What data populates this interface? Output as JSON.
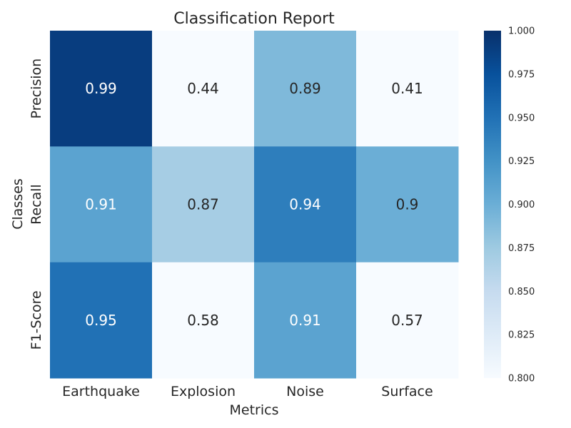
{
  "chart_data": {
    "type": "heatmap",
    "title": "Classification Report",
    "xlabel": "Metrics",
    "ylabel": "Classes",
    "x_categories": [
      "Earthquake",
      "Explosion",
      "Noise",
      "Surface"
    ],
    "y_categories": [
      "Precision",
      "Recall",
      "F1-Score"
    ],
    "values": [
      [
        0.99,
        0.44,
        0.89,
        0.41
      ],
      [
        0.91,
        0.87,
        0.94,
        0.9
      ],
      [
        0.95,
        0.58,
        0.91,
        0.57
      ]
    ],
    "colormap": "Blues",
    "color_range": [
      0.8,
      1.0
    ],
    "colorbar_ticks": [
      "0.800",
      "0.825",
      "0.850",
      "0.875",
      "0.900",
      "0.925",
      "0.950",
      "0.975",
      "1.000"
    ],
    "grid": false,
    "colors": {
      "low": "#f7fbff",
      "high": "#08306b",
      "text_dark": "#262626",
      "text_light": "#ffffff"
    }
  }
}
